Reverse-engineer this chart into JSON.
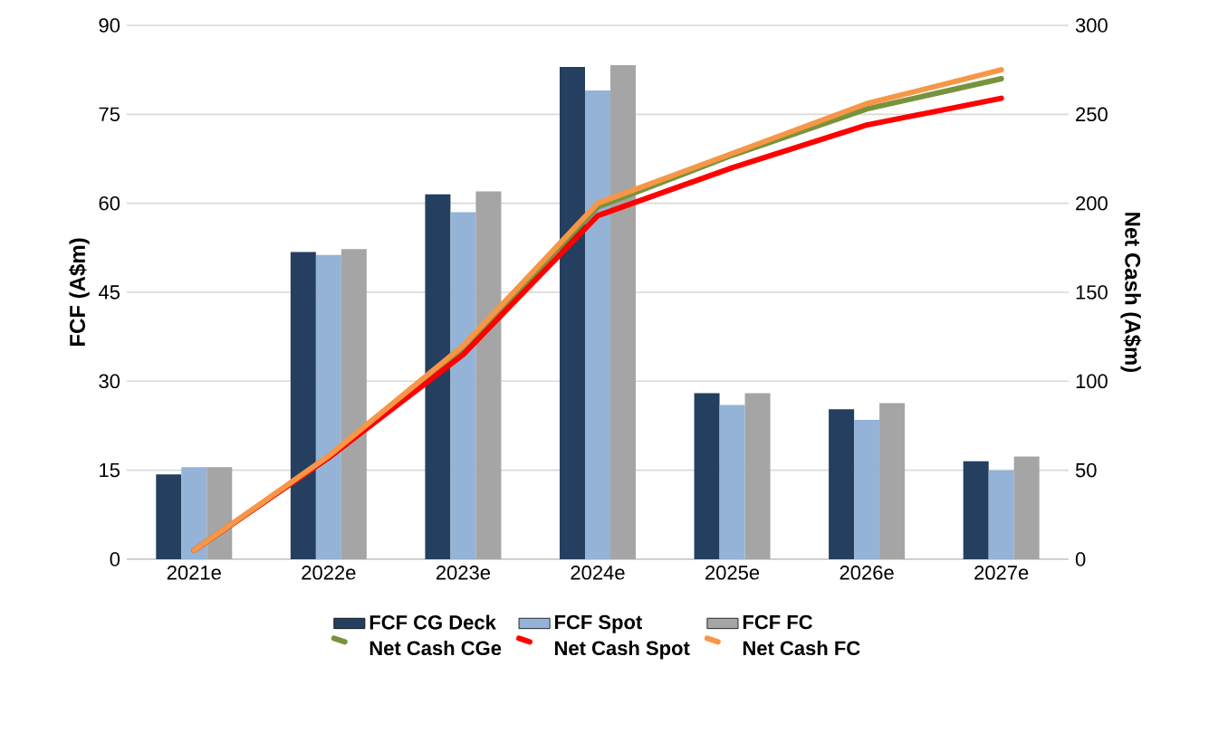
{
  "chart_data": {
    "type": "bar",
    "categories": [
      "2021e",
      "2022e",
      "2023e",
      "2024e",
      "2025e",
      "2026e",
      "2027e"
    ],
    "series": [
      {
        "name": "FCF CG Deck",
        "color": "#243f60",
        "values": [
          14.3,
          51.8,
          61.5,
          83,
          28,
          25.3,
          16.5
        ]
      },
      {
        "name": "FCF Spot",
        "color": "#95b3d7",
        "values": [
          15.5,
          51.3,
          58.5,
          79,
          26,
          23.5,
          15
        ]
      },
      {
        "name": "FCF FC",
        "color": "#a5a5a5",
        "values": [
          15.5,
          52.3,
          62,
          83.3,
          28,
          26.3,
          17.3
        ]
      },
      {
        "name": "Net Cash CGe",
        "type": "line",
        "axis": "y2",
        "color": "#77933c",
        "values": [
          5,
          57,
          118,
          198,
          227,
          253,
          270
        ]
      },
      {
        "name": "Net Cash Spot",
        "type": "line",
        "axis": "y2",
        "color": "#ff0000",
        "values": [
          5,
          57,
          115,
          193,
          220,
          244,
          259
        ]
      },
      {
        "name": "Net Cash FC",
        "type": "line",
        "axis": "y2",
        "color": "#f79646",
        "values": [
          5,
          58,
          120,
          200,
          228,
          256,
          275
        ]
      }
    ],
    "ylabel": "FCF  (A$m)",
    "y2label": "Net Cash (A$m)",
    "ylim": [
      0,
      90
    ],
    "yticks": [
      0,
      15,
      30,
      45,
      60,
      75,
      90
    ],
    "y2lim": [
      0,
      300
    ],
    "y2ticks": [
      0,
      50,
      100,
      150,
      200,
      250,
      300
    ],
    "grid": "y",
    "legend": "bottom"
  }
}
